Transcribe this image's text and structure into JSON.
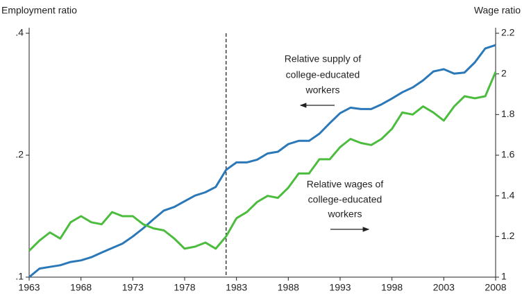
{
  "chart_data": {
    "type": "line",
    "y_label": "Employment ratio",
    "y2_label": "Wage ratio",
    "x": [
      1963,
      1964,
      1965,
      1966,
      1967,
      1968,
      1969,
      1970,
      1971,
      1972,
      1973,
      1974,
      1975,
      1976,
      1977,
      1978,
      1979,
      1980,
      1981,
      1982,
      1983,
      1984,
      1985,
      1986,
      1987,
      1988,
      1989,
      1990,
      1991,
      1992,
      1993,
      1994,
      1995,
      1996,
      1997,
      1998,
      1999,
      2000,
      2001,
      2002,
      2003,
      2004,
      2005,
      2006,
      2007,
      2008
    ],
    "xlim": [
      1963,
      2008
    ],
    "xticks": [
      1963,
      1968,
      1973,
      1978,
      1983,
      1988,
      1993,
      1998,
      2003,
      2008
    ],
    "ylim": [
      0.1,
      0.4
    ],
    "ylog": true,
    "yticks": [
      {
        "value": 0.1,
        "label": ".1"
      },
      {
        "value": 0.2,
        "label": ".2"
      },
      {
        "value": 0.4,
        "label": ".4"
      }
    ],
    "y2lim": [
      1,
      2.2
    ],
    "y2ticks": [
      1,
      1.2,
      1.4,
      1.6,
      1.8,
      2,
      2.2
    ],
    "vline_x": 1982,
    "series": [
      {
        "color": "#2b78b8",
        "axis": "y",
        "values": [
          0.1,
          0.105,
          0.106,
          0.107,
          0.109,
          0.11,
          0.112,
          0.115,
          0.118,
          0.121,
          0.126,
          0.132,
          0.139,
          0.146,
          0.149,
          0.154,
          0.159,
          0.162,
          0.167,
          0.184,
          0.192,
          0.192,
          0.195,
          0.202,
          0.204,
          0.213,
          0.217,
          0.217,
          0.226,
          0.24,
          0.254,
          0.262,
          0.26,
          0.26,
          0.267,
          0.276,
          0.286,
          0.294,
          0.306,
          0.322,
          0.326,
          0.318,
          0.32,
          0.339,
          0.367,
          0.374
        ]
      },
      {
        "color": "#4cbc3e",
        "axis": "y2",
        "values": [
          1.13,
          1.18,
          1.22,
          1.19,
          1.27,
          1.3,
          1.27,
          1.26,
          1.32,
          1.3,
          1.3,
          1.26,
          1.24,
          1.23,
          1.19,
          1.14,
          1.15,
          1.17,
          1.14,
          1.2,
          1.29,
          1.32,
          1.37,
          1.4,
          1.39,
          1.44,
          1.51,
          1.51,
          1.58,
          1.58,
          1.64,
          1.68,
          1.66,
          1.65,
          1.68,
          1.73,
          1.81,
          1.8,
          1.84,
          1.81,
          1.77,
          1.84,
          1.89,
          1.88,
          1.89,
          2.01
        ]
      }
    ],
    "annotations": [
      {
        "lines": [
          "Relative supply of",
          "college-educated",
          "workers"
        ]
      },
      {
        "lines": [
          "Relative wages of",
          "college-educated",
          "workers"
        ]
      }
    ]
  }
}
